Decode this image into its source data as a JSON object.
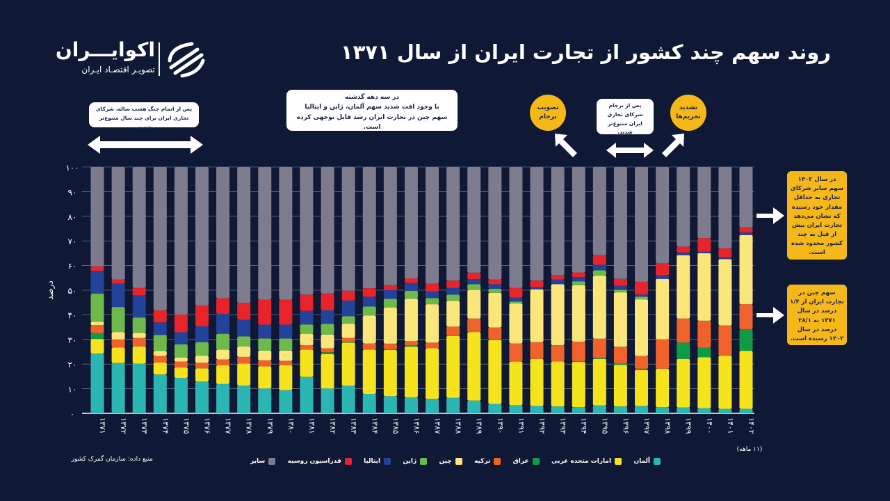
{
  "title": "روند سهم چند کشور از تجارت ایران از سال ۱۳۷۱",
  "logo": {
    "name": "اکوایـــران",
    "tagline": "تصویـر اقتصـاد ایـران"
  },
  "source": "منبع داده: سازمان گمرک کشور",
  "annotations": {
    "war": "پس از اتمام جنگ هشت ساله، شرکای تجاری ایران برای چند سال متنوع‌تر شدند.",
    "decade_title": "در سه دهه گذشته",
    "decade_line1": "با وجود افت شدید سهم آلمان، ژاپن و ایتالیا",
    "decade_line2": "سهم چین در تجارت ایران رشد قابل توجهی کرده است.",
    "jcpoa_approval": "تصویب برجام",
    "after_jcpoa": "پس از برجام شرکای تجاری ایران متنوع‌تر شدند.",
    "sanctions": "تشدید تحریم‌ها",
    "others_1402": "در سال ۱۴۰۲ سهم سایر شرکای تجاری به حداقل مقدار خود رسیده که نشان می‌دهد تجارت ایران بیش از قبل به چند کشور محدود شده است.",
    "china_share": "سهم چین در تجارت ایران از ۱/۴ درصد در سال ۱۳۷۱ به ۲۸/۱ درصد در سال ۱۴۰۲ رسیده است."
  },
  "chart_data": {
    "type": "bar",
    "stacked": true,
    "ylabel": "درصد",
    "ylim": [
      0,
      100
    ],
    "yticks": [
      "۰",
      "۱۰",
      "۲۰",
      "۳۰",
      "۴۰",
      "۵۰",
      "۶۰",
      "۷۰",
      "۸۰",
      "۹۰",
      "۱۰۰"
    ],
    "grid": true,
    "legend": "bottom",
    "last_note": "(۱۱ ماهه)",
    "categories": [
      "۱۳۷۱",
      "۱۳۷۲",
      "۱۳۷۳",
      "۱۳۷۴",
      "۱۳۷۵",
      "۱۳۷۶",
      "۱۳۷۷",
      "۱۳۷۸",
      "۱۳۷۹",
      "۱۳۸۰",
      "۱۳۸۱",
      "۱۳۸۲",
      "۱۳۸۳",
      "۱۳۸۴",
      "۱۳۸۵",
      "۱۳۸۶",
      "۱۳۸۷",
      "۱۳۸۸",
      "۱۳۸۹",
      "۱۳۹۰",
      "۱۳۹۱",
      "۱۳۹۲",
      "۱۳۹۳",
      "۱۳۹۴",
      "۱۳۹۵",
      "۱۳۹۶",
      "۱۳۹۷",
      "۱۳۹۸",
      "۱۳۹۹",
      "۱۴۰۰",
      "۱۴۰۱",
      "۱۴۰۲"
    ],
    "series": [
      {
        "name": "آلمان",
        "color": "#2bb6b4",
        "values": [
          24.3,
          20.4,
          20.2,
          15.8,
          14.4,
          12.9,
          11.9,
          11.3,
          10.1,
          9.4,
          14.8,
          10.1,
          11.2,
          7.9,
          7.0,
          6.5,
          5.9,
          6.3,
          5.2,
          3.8,
          3.3,
          3.0,
          2.8,
          2.5,
          3.2,
          2.8,
          3.0,
          2.5,
          2.4,
          2.1,
          1.8,
          1.8
        ]
      },
      {
        "name": "امارات متحده عربی",
        "color": "#f4e31d",
        "values": [
          5.9,
          6.3,
          7.0,
          4.9,
          4.2,
          5.4,
          7.6,
          8.9,
          9.0,
          10.2,
          11.1,
          13.9,
          17.5,
          18.0,
          18.7,
          20.6,
          20.5,
          25.1,
          27.8,
          26.0,
          17.7,
          19.1,
          18.3,
          18.4,
          18.9,
          16.9,
          14.6,
          15.6,
          19.7,
          20.7,
          21.6,
          23.6
        ]
      },
      {
        "name": "عراق",
        "color": "#0f9a45",
        "values": [
          2.4,
          0,
          0,
          0,
          0,
          0,
          0,
          0,
          0,
          0,
          0,
          0.8,
          0.3,
          0,
          0.3,
          0.5,
          0,
          0,
          0,
          0.4,
          0,
          0,
          0,
          0.3,
          0.4,
          0.5,
          0.5,
          0,
          6.6,
          3.8,
          0,
          8.7
        ]
      },
      {
        "name": "ترکیه",
        "color": "#f0622b",
        "values": [
          3.2,
          3.3,
          3.4,
          2.6,
          2.4,
          2.2,
          2.4,
          2.7,
          2.4,
          1.7,
          1.7,
          1.6,
          1.6,
          2.5,
          2.3,
          1.7,
          2.3,
          3.8,
          5.5,
          4.7,
          7.4,
          6.8,
          6.6,
          7.9,
          7.8,
          6.8,
          5.2,
          12.0,
          9.8,
          11.0,
          12.3,
          10.2
        ]
      },
      {
        "name": "چین",
        "color": "#fbe67c",
        "values": [
          1.4,
          3.0,
          2.1,
          2.0,
          1.7,
          2.9,
          4.0,
          4.3,
          4.0,
          4.2,
          4.7,
          5.6,
          5.8,
          11.3,
          14.7,
          17.2,
          15.6,
          10.5,
          11.5,
          14.0,
          16.2,
          21.4,
          24.7,
          22.9,
          25.6,
          22.1,
          23.0,
          24.5,
          25.7,
          27.4,
          26.9,
          28.1
        ]
      },
      {
        "name": "ژاپن",
        "color": "#6db94b",
        "values": [
          11.4,
          10.2,
          6.2,
          6.5,
          5.3,
          5.5,
          6.4,
          4.0,
          4.9,
          4.9,
          3.8,
          4.3,
          3.0,
          3.7,
          3.5,
          3.3,
          2.5,
          2.5,
          2.4,
          1.7,
          0.8,
          0,
          0,
          1.6,
          2.2,
          1.0,
          1.0,
          0,
          0,
          0,
          0,
          0
        ]
      },
      {
        "name": "ایتالیا",
        "color": "#23429a",
        "values": [
          9.2,
          9.4,
          9.0,
          5.1,
          4.9,
          6.4,
          8.1,
          6.8,
          5.6,
          5.6,
          5.5,
          5.5,
          6.4,
          3.9,
          3.5,
          3.1,
          2.7,
          2.7,
          2.1,
          1.8,
          1.6,
          0.9,
          1.9,
          1.7,
          2.2,
          1.7,
          0.9,
          1.4,
          1.1,
          0.6,
          0.7,
          1.0
        ]
      },
      {
        "name": "فدراسیون روسیه",
        "color": "#e8242b",
        "values": [
          1.9,
          1.7,
          3.1,
          4.9,
          7.2,
          8.4,
          6.3,
          6.8,
          10.2,
          10.2,
          6.6,
          6.9,
          4.0,
          3.5,
          2.0,
          1.9,
          3.1,
          3.0,
          2.6,
          1.9,
          3.9,
          2.7,
          1.9,
          1.9,
          3.9,
          2.8,
          5.2,
          5.0,
          2.4,
          5.5,
          3.7,
          2.1
        ]
      },
      {
        "name": "سایر",
        "color": "#7d7b8e",
        "values": [
          40.3,
          45.7,
          49.0,
          58.2,
          59.9,
          56.3,
          53.3,
          55.2,
          53.8,
          53.8,
          51.8,
          51.3,
          50.2,
          49.2,
          48.0,
          45.2,
          47.4,
          46.1,
          42.9,
          45.7,
          49.1,
          46.1,
          43.8,
          42.8,
          35.8,
          45.4,
          46.6,
          39.0,
          32.3,
          28.9,
          33.0,
          24.5
        ]
      }
    ]
  }
}
